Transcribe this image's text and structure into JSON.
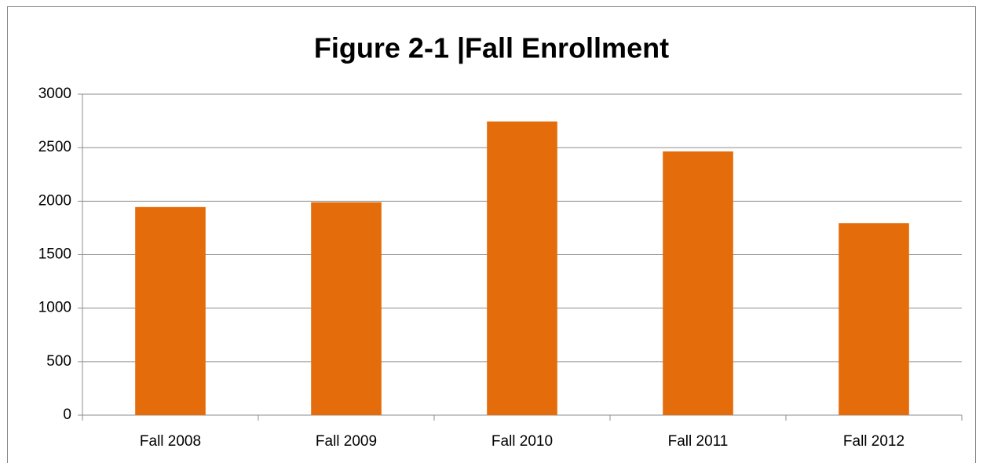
{
  "chart_data": {
    "type": "bar",
    "title": "Figure 2-1 |Fall Enrollment",
    "categories": [
      "Fall 2008",
      "Fall 2009",
      "Fall 2010",
      "Fall 2011",
      "Fall 2012"
    ],
    "values": [
      1945,
      1990,
      2745,
      2465,
      1795
    ],
    "color": "#e46c0a",
    "ylim": [
      0,
      3000
    ],
    "yticks": [
      0,
      500,
      1000,
      1500,
      2000,
      2500,
      3000
    ],
    "grid": true
  }
}
